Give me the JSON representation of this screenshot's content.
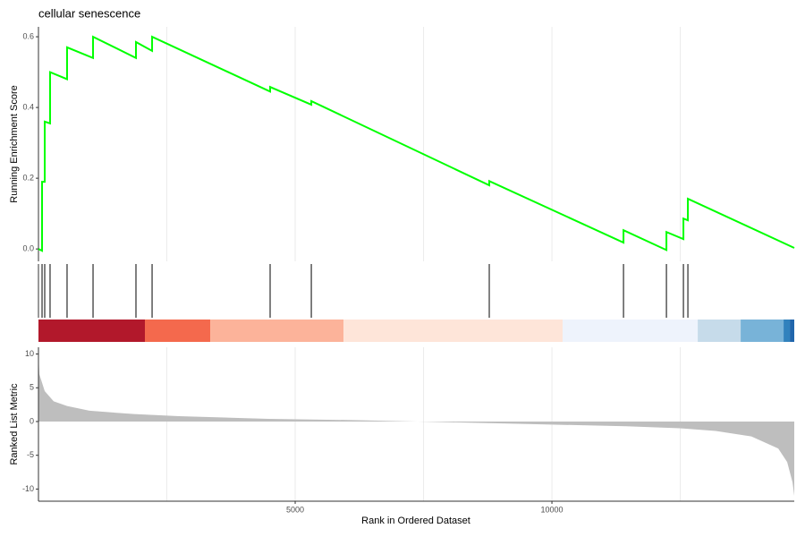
{
  "chart_data": [
    {
      "type": "line",
      "title": "cellular senescence",
      "ylabel": "Running Enrichment Score",
      "x": [
        0,
        70,
        70,
        122,
        122,
        226,
        226,
        557,
        557,
        1063,
        1063,
        1899,
        1899,
        2213,
        2213,
        4512,
        4512,
        5314,
        5314,
        8780,
        8780,
        11394,
        11394,
        12230,
        12230,
        12561,
        12561,
        12648,
        12648,
        14720
      ],
      "values": [
        0,
        -0.005,
        0.19,
        0.19,
        0.36,
        0.355,
        0.5,
        0.48,
        0.57,
        0.54,
        0.6,
        0.54,
        0.585,
        0.56,
        0.6,
        0.445,
        0.458,
        0.408,
        0.418,
        0.18,
        0.192,
        0.018,
        0.053,
        -0.003,
        0.048,
        0.028,
        0.086,
        0.081,
        0.142,
        0.003
      ],
      "color": "#00ff00",
      "xlim": [
        0,
        14720
      ],
      "ylim": [
        -0.035,
        0.628
      ],
      "yticks": [
        {
          "value": 0,
          "label": "0.0"
        },
        0.2,
        0.4,
        0.6
      ],
      "xgrid": [
        2500,
        5000,
        7500,
        10000,
        12500
      ]
    },
    {
      "type": "rug",
      "x": [
        70,
        122,
        226,
        557,
        1063,
        1899,
        2213,
        4512,
        5314,
        8780,
        11394,
        12230,
        12561,
        12648
      ],
      "color": "#000000",
      "xlim": [
        0,
        14720
      ]
    },
    {
      "type": "band",
      "xlim": [
        0,
        14720
      ],
      "segments": [
        {
          "start": 0,
          "end": 2073,
          "color": "#b2182b"
        },
        {
          "start": 2073,
          "end": 3345,
          "color": "#f4694d"
        },
        {
          "start": 3345,
          "end": 5941,
          "color": "#fcb39a"
        },
        {
          "start": 5941,
          "end": 10209,
          "color": "#fee5d9"
        },
        {
          "start": 10209,
          "end": 12840,
          "color": "#eef3fc"
        },
        {
          "start": 12840,
          "end": 13676,
          "color": "#c6dbea"
        },
        {
          "start": 13676,
          "end": 14512,
          "color": "#78b3d8"
        },
        {
          "start": 14512,
          "end": 14634,
          "color": "#3182bd"
        },
        {
          "start": 14634,
          "end": 14720,
          "color": "#2166ac"
        }
      ]
    },
    {
      "type": "area",
      "ylabel": "Ranked List Metric",
      "xlabel": "Rank in Ordered Dataset",
      "x": [
        0,
        17,
        122,
        296,
        557,
        993,
        1864,
        2735,
        4477,
        6220,
        7091,
        7962,
        9704,
        11446,
        12491,
        13188,
        13885,
        14408,
        14582,
        14686,
        14720
      ],
      "values": [
        10,
        7,
        4.5,
        3,
        2.3,
        1.6,
        1.1,
        0.8,
        0.4,
        0.2,
        0.05,
        -0.1,
        -0.4,
        -0.7,
        -1.0,
        -1.4,
        -2.2,
        -4,
        -6,
        -9,
        -11
      ],
      "color": "#bebebe",
      "xlim": [
        0,
        14720
      ],
      "ylim": [
        -11.8,
        11
      ],
      "yticks": [
        10,
        5,
        0,
        -5,
        -10
      ],
      "xticks": [
        5000,
        10000
      ],
      "xgrid": [
        2500,
        5000,
        7500,
        10000,
        12500
      ]
    }
  ]
}
